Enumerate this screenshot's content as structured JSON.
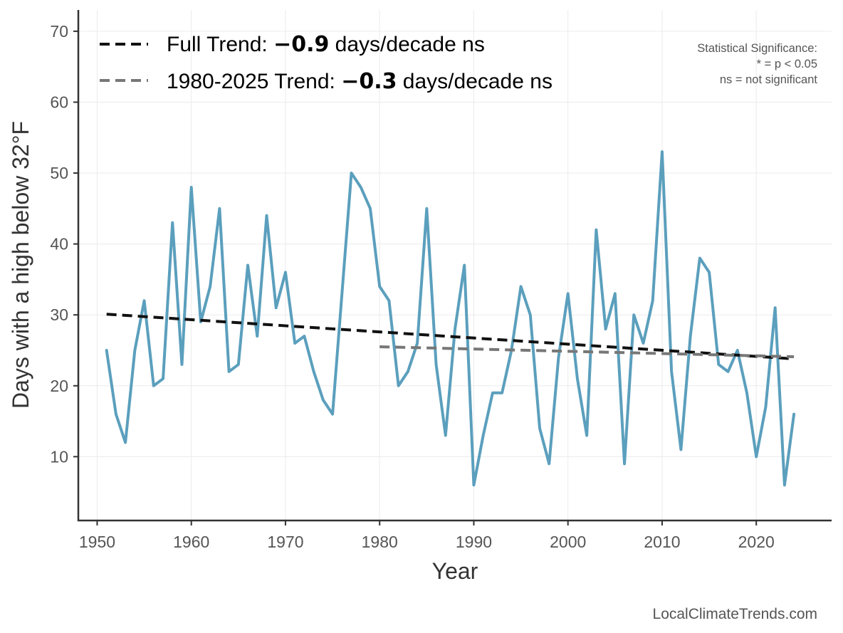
{
  "chart_data": {
    "type": "line",
    "xlabel": "Year",
    "ylabel": "Days with a high below 32°F",
    "xlim": [
      1948,
      2028
    ],
    "ylim": [
      1,
      73
    ],
    "xticks": [
      "1950",
      "1960",
      "1970",
      "1980",
      "1990",
      "2000",
      "2010",
      "2020"
    ],
    "yticks": [
      "10",
      "20",
      "30",
      "40",
      "50",
      "60",
      "70"
    ],
    "grid": true,
    "legend_position": "top-left",
    "series": [
      {
        "color": "#5B9FBD",
        "x": [
          1951,
          1952,
          1953,
          1954,
          1955,
          1956,
          1957,
          1958,
          1959,
          1960,
          1961,
          1962,
          1963,
          1964,
          1965,
          1966,
          1967,
          1968,
          1969,
          1970,
          1971,
          1972,
          1973,
          1974,
          1975,
          1976,
          1977,
          1978,
          1979,
          1980,
          1981,
          1982,
          1983,
          1984,
          1985,
          1986,
          1987,
          1988,
          1989,
          1990,
          1991,
          1992,
          1993,
          1994,
          1995,
          1996,
          1997,
          1998,
          1999,
          2000,
          2001,
          2002,
          2003,
          2004,
          2005,
          2006,
          2007,
          2008,
          2009,
          2010,
          2011,
          2012,
          2013,
          2014,
          2015,
          2016,
          2017,
          2018,
          2019,
          2020,
          2021,
          2022,
          2023,
          2024
        ],
        "values": [
          25,
          16,
          12,
          25,
          32,
          20,
          21,
          43,
          23,
          48,
          29,
          34,
          45,
          22,
          23,
          37,
          27,
          44,
          31,
          36,
          26,
          27,
          22,
          18,
          16,
          33,
          50,
          48,
          45,
          34,
          32,
          20,
          22,
          26,
          45,
          23,
          13,
          28,
          37,
          6,
          13,
          19,
          19,
          25,
          34,
          30,
          14,
          9,
          24,
          33,
          21,
          13,
          42,
          28,
          33,
          9,
          30,
          26,
          32,
          53,
          22,
          11,
          27,
          38,
          36,
          23,
          22,
          25,
          19,
          10,
          17,
          31,
          6,
          16
        ]
      },
      {
        "name_prefix": "Full Trend: ",
        "name_value": "−0.9",
        "name_suffix": " days/decade ns",
        "color": "#111111",
        "style": "dashed",
        "x": [
          1951,
          2024
        ],
        "values": [
          30.1,
          23.8
        ]
      },
      {
        "name_prefix": "1980-2025 Trend: ",
        "name_value": "−0.3",
        "name_suffix": " days/decade ns",
        "color": "#777777",
        "style": "dashed",
        "x": [
          1980,
          2024
        ],
        "values": [
          25.5,
          24.1
        ]
      }
    ],
    "annotations": [
      "Statistical Significance:",
      "* = p < 0.05",
      "ns = not significant"
    ],
    "source": "LocalClimateTrends.com"
  }
}
